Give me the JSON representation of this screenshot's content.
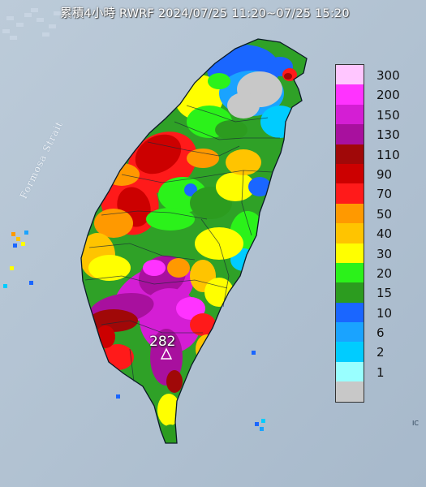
{
  "title": "累積4小時 RWRF 2024/07/25 11:20~07/25 15:20",
  "map_label": "Formosa Strait",
  "max_value": "282",
  "max_marker_icon": "triangle-outline-icon",
  "corner_text": "IC",
  "colors": {
    "sea": "#aebfd0",
    "sea_light": "#c7d4e2",
    "land_base": "#2fa127",
    "coast": "#0a1a26"
  },
  "legend": {
    "items": [
      {
        "label": "300",
        "color": "#ffc6ff"
      },
      {
        "label": "200",
        "color": "#ff33ff"
      },
      {
        "label": "150",
        "color": "#d41ed4"
      },
      {
        "label": "130",
        "color": "#a8109e"
      },
      {
        "label": "110",
        "color": "#a00808"
      },
      {
        "label": "90",
        "color": "#cc0000"
      },
      {
        "label": "70",
        "color": "#ff1a1a"
      },
      {
        "label": "50",
        "color": "#ff9900"
      },
      {
        "label": "40",
        "color": "#ffc400"
      },
      {
        "label": "30",
        "color": "#ffff00"
      },
      {
        "label": "20",
        "color": "#2bf21a"
      },
      {
        "label": "15",
        "color": "#2c9c1f"
      },
      {
        "label": "10",
        "color": "#1a66ff"
      },
      {
        "label": "6",
        "color": "#1aa3ff"
      },
      {
        "label": "2",
        "color": "#00ccff"
      },
      {
        "label": "1",
        "color": "#99ffff"
      },
      {
        "label": "",
        "color": "#c8c8c8"
      }
    ]
  }
}
